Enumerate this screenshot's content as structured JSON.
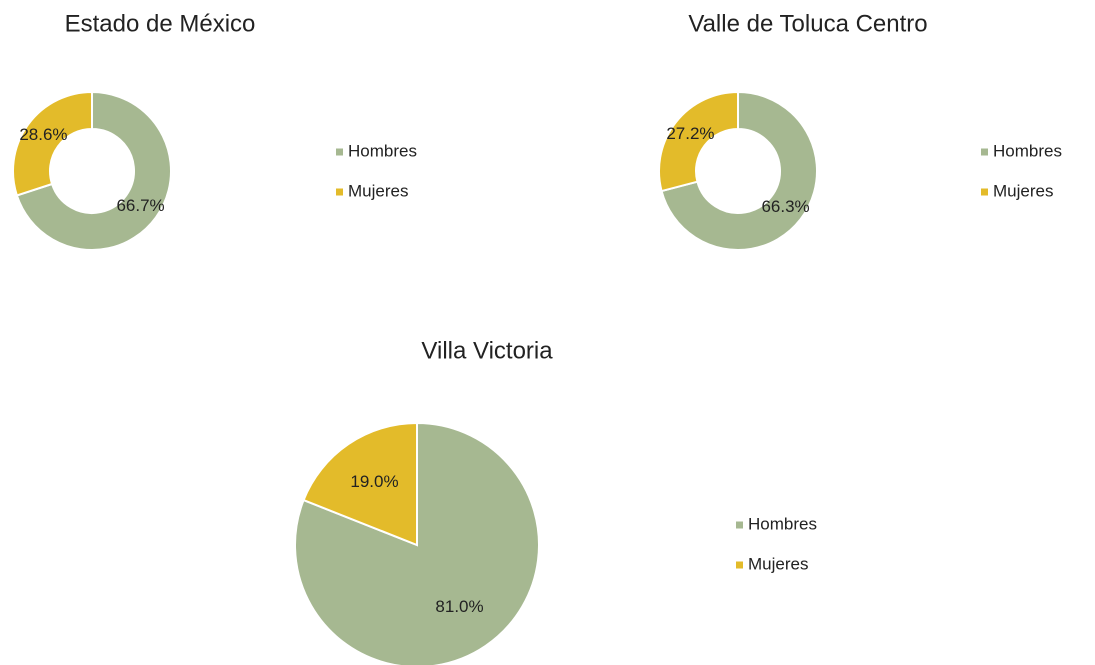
{
  "chart_data": [
    {
      "type": "doughnut",
      "title": "Estado de México",
      "categories": [
        "Hombres",
        "Mujeres"
      ],
      "values": [
        66.7,
        28.6
      ],
      "value_labels": [
        "66.7%",
        "28.6%"
      ],
      "colors": [
        "#a6b891",
        "#e3bb2a"
      ],
      "legend": "right"
    },
    {
      "type": "doughnut",
      "title": "Valle de Toluca Centro",
      "categories": [
        "Hombres",
        "Mujeres"
      ],
      "values": [
        66.3,
        27.2
      ],
      "value_labels": [
        "66.3%",
        "27.2%"
      ],
      "colors": [
        "#a6b891",
        "#e3bb2a"
      ],
      "legend": "right"
    },
    {
      "type": "pie",
      "title": "Villa Victoria",
      "categories": [
        "Hombres",
        "Mujeres"
      ],
      "values": [
        81.0,
        19.0
      ],
      "value_labels": [
        "81.0%",
        "19.0%"
      ],
      "colors": [
        "#a6b891",
        "#e3bb2a"
      ],
      "legend": "right"
    }
  ]
}
